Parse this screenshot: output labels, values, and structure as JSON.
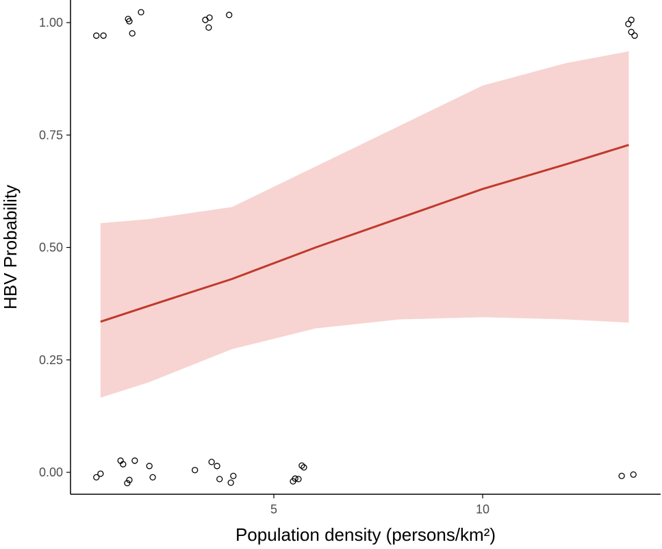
{
  "chart_data": {
    "type": "scatter",
    "title": "",
    "xlabel": "Population density (persons/km²)",
    "ylabel": "HBV Probability",
    "xlim": [
      0.13,
      14.25
    ],
    "ylim": [
      -0.05,
      1.05
    ],
    "x_ticks": [
      {
        "value": 5,
        "label": "5"
      },
      {
        "value": 10,
        "label": "10"
      }
    ],
    "y_ticks": [
      {
        "value": 0,
        "label": "0.00"
      },
      {
        "value": 0.25,
        "label": "0.25"
      },
      {
        "value": 0.5,
        "label": "0.50"
      },
      {
        "value": 0.75,
        "label": "0.75"
      },
      {
        "value": 1,
        "label": "1.00"
      }
    ],
    "grid": false,
    "colors": {
      "line": "#c0392b",
      "ribbon": "#f7d4d1",
      "points": "#000000",
      "axis": "#000000"
    },
    "fit": {
      "x": [
        0.85,
        2,
        4,
        6,
        8,
        10,
        12,
        13.5
      ],
      "y": [
        0.335,
        0.37,
        0.43,
        0.5,
        0.565,
        0.63,
        0.685,
        0.728
      ],
      "lower": [
        0.166,
        0.2,
        0.274,
        0.32,
        0.34,
        0.345,
        0.34,
        0.333
      ],
      "upper": [
        0.554,
        0.563,
        0.59,
        0.68,
        0.77,
        0.86,
        0.91,
        0.936
      ]
    },
    "points": [
      [
        0.75,
        0.971
      ],
      [
        0.92,
        0.971
      ],
      [
        1.51,
        1.008
      ],
      [
        1.54,
        1.003
      ],
      [
        1.61,
        0.976
      ],
      [
        1.82,
        1.023
      ],
      [
        3.36,
        1.006
      ],
      [
        3.46,
        1.011
      ],
      [
        3.44,
        0.989
      ],
      [
        3.93,
        1.017
      ],
      [
        13.49,
        0.997
      ],
      [
        13.56,
        1.006
      ],
      [
        13.56,
        0.979
      ],
      [
        13.64,
        0.971
      ],
      [
        0.75,
        -0.011
      ],
      [
        0.85,
        -0.003
      ],
      [
        1.33,
        0.026
      ],
      [
        1.39,
        0.018
      ],
      [
        1.49,
        -0.024
      ],
      [
        1.54,
        -0.017
      ],
      [
        1.67,
        0.026
      ],
      [
        2.02,
        0.014
      ],
      [
        2.1,
        -0.011
      ],
      [
        3.11,
        0.005
      ],
      [
        3.51,
        0.023
      ],
      [
        3.64,
        0.014
      ],
      [
        3.7,
        -0.015
      ],
      [
        3.97,
        -0.023
      ],
      [
        4.03,
        -0.008
      ],
      [
        5.46,
        -0.02
      ],
      [
        5.51,
        -0.014
      ],
      [
        5.59,
        -0.015
      ],
      [
        5.67,
        0.015
      ],
      [
        5.72,
        0.011
      ],
      [
        13.33,
        -0.008
      ],
      [
        13.61,
        -0.005
      ]
    ]
  }
}
